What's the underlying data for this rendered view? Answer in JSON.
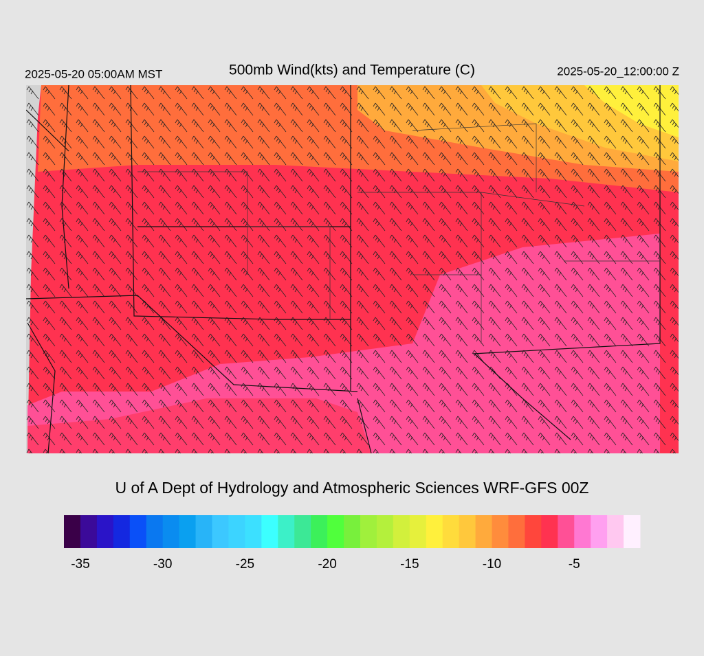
{
  "header": {
    "left": "2025-05-20 05:00AM MST",
    "title": "500mb Wind(kts) and Temperature (C)",
    "right": "2025-05-20_12:00:00 Z"
  },
  "credit": "U of A Dept of Hydrology and Atmospheric Sciences WRF-GFS 00Z",
  "colorbar": {
    "lim": [
      -36,
      -1
    ],
    "ticks": [
      -35,
      -30,
      -25,
      -20,
      -15,
      -10,
      -5
    ],
    "colors": [
      "#3a0048",
      "#3b0a99",
      "#2a14c8",
      "#1428e0",
      "#0a50f8",
      "#0a78f0",
      "#0a8cf0",
      "#0aa0f0",
      "#28b4f8",
      "#3cc8ff",
      "#3cd4ff",
      "#3ce0ff",
      "#3cffff",
      "#3cf0c8",
      "#3ce896",
      "#3cf05a",
      "#50ff3c",
      "#78f03c",
      "#a0f03c",
      "#b4f03c",
      "#d2f03c",
      "#e6f03c",
      "#fff03c",
      "#ffdc3c",
      "#ffc83c",
      "#ffaa3c",
      "#ff8c3c",
      "#ff6e3c",
      "#ff463c",
      "#ff3250",
      "#ff5096",
      "#ff78d2",
      "#ffa0f0",
      "#ffc8f0",
      "#fff0ff"
    ]
  }
}
